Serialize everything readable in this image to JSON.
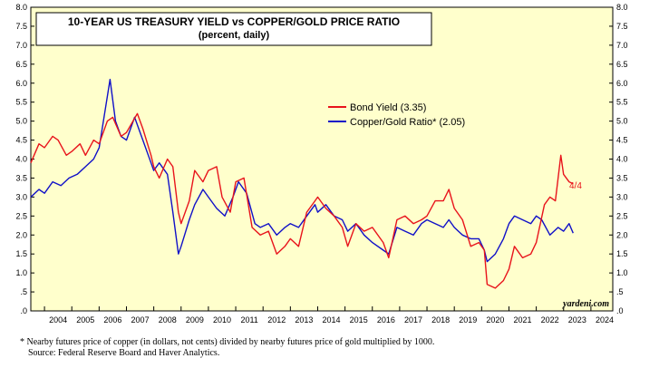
{
  "chart_data": {
    "type": "line",
    "title": "10-YEAR US TREASURY YIELD vs COPPER/GOLD PRICE RATIO",
    "subtitle": "(percent, daily)",
    "ylim": [
      0,
      8
    ],
    "yticks": [
      ".0",
      ".5",
      "1.0",
      "1.5",
      "2.0",
      "2.5",
      "3.0",
      "3.5",
      "4.0",
      "4.5",
      "5.0",
      "5.5",
      "6.0",
      "6.5",
      "7.0",
      "7.5",
      "8.0"
    ],
    "x_range": [
      2003.5,
      2024.8
    ],
    "years": [
      "2004",
      "2005",
      "2006",
      "2007",
      "2008",
      "2009",
      "2010",
      "2011",
      "2012",
      "2013",
      "2014",
      "2015",
      "2016",
      "2017",
      "2018",
      "2019",
      "2020",
      "2021",
      "2022",
      "2023",
      "2024"
    ],
    "series": [
      {
        "name": "Bond Yield (3.35)",
        "color": "#e8131b",
        "points": [
          [
            2003.5,
            3.9
          ],
          [
            2003.8,
            4.4
          ],
          [
            2004.0,
            4.3
          ],
          [
            2004.3,
            4.6
          ],
          [
            2004.5,
            4.5
          ],
          [
            2004.8,
            4.1
          ],
          [
            2005.0,
            4.2
          ],
          [
            2005.3,
            4.4
          ],
          [
            2005.5,
            4.1
          ],
          [
            2005.8,
            4.5
          ],
          [
            2006.0,
            4.4
          ],
          [
            2006.3,
            5.0
          ],
          [
            2006.5,
            5.1
          ],
          [
            2006.8,
            4.6
          ],
          [
            2007.0,
            4.7
          ],
          [
            2007.4,
            5.2
          ],
          [
            2007.6,
            4.8
          ],
          [
            2007.9,
            4.1
          ],
          [
            2008.0,
            3.8
          ],
          [
            2008.2,
            3.5
          ],
          [
            2008.5,
            4.0
          ],
          [
            2008.7,
            3.8
          ],
          [
            2008.9,
            2.6
          ],
          [
            2009.0,
            2.3
          ],
          [
            2009.3,
            2.9
          ],
          [
            2009.5,
            3.7
          ],
          [
            2009.8,
            3.4
          ],
          [
            2010.0,
            3.7
          ],
          [
            2010.3,
            3.8
          ],
          [
            2010.5,
            3.0
          ],
          [
            2010.8,
            2.6
          ],
          [
            2011.0,
            3.4
          ],
          [
            2011.3,
            3.5
          ],
          [
            2011.6,
            2.2
          ],
          [
            2011.9,
            2.0
          ],
          [
            2012.2,
            2.1
          ],
          [
            2012.5,
            1.5
          ],
          [
            2012.8,
            1.7
          ],
          [
            2013.0,
            1.9
          ],
          [
            2013.3,
            1.7
          ],
          [
            2013.6,
            2.6
          ],
          [
            2013.9,
            2.9
          ],
          [
            2014.0,
            3.0
          ],
          [
            2014.3,
            2.7
          ],
          [
            2014.6,
            2.5
          ],
          [
            2014.9,
            2.2
          ],
          [
            2015.1,
            1.7
          ],
          [
            2015.4,
            2.3
          ],
          [
            2015.7,
            2.1
          ],
          [
            2016.0,
            2.2
          ],
          [
            2016.4,
            1.8
          ],
          [
            2016.6,
            1.4
          ],
          [
            2016.9,
            2.4
          ],
          [
            2017.2,
            2.5
          ],
          [
            2017.5,
            2.3
          ],
          [
            2017.8,
            2.4
          ],
          [
            2018.0,
            2.5
          ],
          [
            2018.3,
            2.9
          ],
          [
            2018.6,
            2.9
          ],
          [
            2018.8,
            3.2
          ],
          [
            2019.0,
            2.7
          ],
          [
            2019.3,
            2.4
          ],
          [
            2019.6,
            1.7
          ],
          [
            2019.9,
            1.8
          ],
          [
            2020.1,
            1.6
          ],
          [
            2020.2,
            0.7
          ],
          [
            2020.5,
            0.6
          ],
          [
            2020.8,
            0.8
          ],
          [
            2021.0,
            1.1
          ],
          [
            2021.2,
            1.7
          ],
          [
            2021.5,
            1.4
          ],
          [
            2021.8,
            1.5
          ],
          [
            2022.0,
            1.8
          ],
          [
            2022.3,
            2.8
          ],
          [
            2022.5,
            3.0
          ],
          [
            2022.7,
            2.9
          ],
          [
            2022.9,
            4.1
          ],
          [
            2023.0,
            3.6
          ],
          [
            2023.2,
            3.4
          ],
          [
            2023.35,
            3.35
          ]
        ]
      },
      {
        "name": "Copper/Gold Ratio* (2.05)",
        "color": "#1010c8",
        "points": [
          [
            2003.5,
            3.0
          ],
          [
            2003.8,
            3.2
          ],
          [
            2004.0,
            3.1
          ],
          [
            2004.3,
            3.4
          ],
          [
            2004.6,
            3.3
          ],
          [
            2004.9,
            3.5
          ],
          [
            2005.2,
            3.6
          ],
          [
            2005.5,
            3.8
          ],
          [
            2005.8,
            4.0
          ],
          [
            2006.0,
            4.3
          ],
          [
            2006.2,
            5.2
          ],
          [
            2006.4,
            6.1
          ],
          [
            2006.6,
            5.0
          ],
          [
            2006.8,
            4.6
          ],
          [
            2007.0,
            4.5
          ],
          [
            2007.3,
            5.1
          ],
          [
            2007.6,
            4.5
          ],
          [
            2007.9,
            3.9
          ],
          [
            2008.0,
            3.7
          ],
          [
            2008.2,
            3.9
          ],
          [
            2008.5,
            3.6
          ],
          [
            2008.7,
            2.6
          ],
          [
            2008.9,
            1.5
          ],
          [
            2009.0,
            1.7
          ],
          [
            2009.3,
            2.4
          ],
          [
            2009.5,
            2.8
          ],
          [
            2009.8,
            3.2
          ],
          [
            2010.0,
            3.0
          ],
          [
            2010.3,
            2.7
          ],
          [
            2010.6,
            2.5
          ],
          [
            2010.9,
            3.0
          ],
          [
            2011.1,
            3.4
          ],
          [
            2011.4,
            3.1
          ],
          [
            2011.7,
            2.3
          ],
          [
            2011.9,
            2.2
          ],
          [
            2012.2,
            2.3
          ],
          [
            2012.5,
            2.0
          ],
          [
            2012.8,
            2.2
          ],
          [
            2013.0,
            2.3
          ],
          [
            2013.3,
            2.2
          ],
          [
            2013.6,
            2.5
          ],
          [
            2013.9,
            2.8
          ],
          [
            2014.0,
            2.6
          ],
          [
            2014.3,
            2.8
          ],
          [
            2014.6,
            2.5
          ],
          [
            2014.9,
            2.4
          ],
          [
            2015.1,
            2.1
          ],
          [
            2015.4,
            2.3
          ],
          [
            2015.7,
            2.0
          ],
          [
            2016.0,
            1.8
          ],
          [
            2016.4,
            1.6
          ],
          [
            2016.6,
            1.5
          ],
          [
            2016.9,
            2.2
          ],
          [
            2017.2,
            2.1
          ],
          [
            2017.5,
            2.0
          ],
          [
            2017.8,
            2.3
          ],
          [
            2018.0,
            2.4
          ],
          [
            2018.3,
            2.3
          ],
          [
            2018.6,
            2.2
          ],
          [
            2018.8,
            2.4
          ],
          [
            2019.0,
            2.2
          ],
          [
            2019.3,
            2.0
          ],
          [
            2019.6,
            1.9
          ],
          [
            2019.9,
            1.9
          ],
          [
            2020.1,
            1.6
          ],
          [
            2020.2,
            1.3
          ],
          [
            2020.5,
            1.5
          ],
          [
            2020.8,
            1.9
          ],
          [
            2021.0,
            2.3
          ],
          [
            2021.2,
            2.5
          ],
          [
            2021.5,
            2.4
          ],
          [
            2021.8,
            2.3
          ],
          [
            2022.0,
            2.5
          ],
          [
            2022.2,
            2.4
          ],
          [
            2022.5,
            2.0
          ],
          [
            2022.8,
            2.2
          ],
          [
            2023.0,
            2.1
          ],
          [
            2023.2,
            2.3
          ],
          [
            2023.35,
            2.05
          ]
        ]
      }
    ],
    "end_annotation": "4/4",
    "source_credit": "yardeni.com"
  },
  "footnote": {
    "line1": "*  Nearby futures price of copper (in dollars, not cents) divided by nearby futures price of gold multiplied by 1000.",
    "line2": "Source: Federal Reserve Board and Haver Analytics."
  }
}
